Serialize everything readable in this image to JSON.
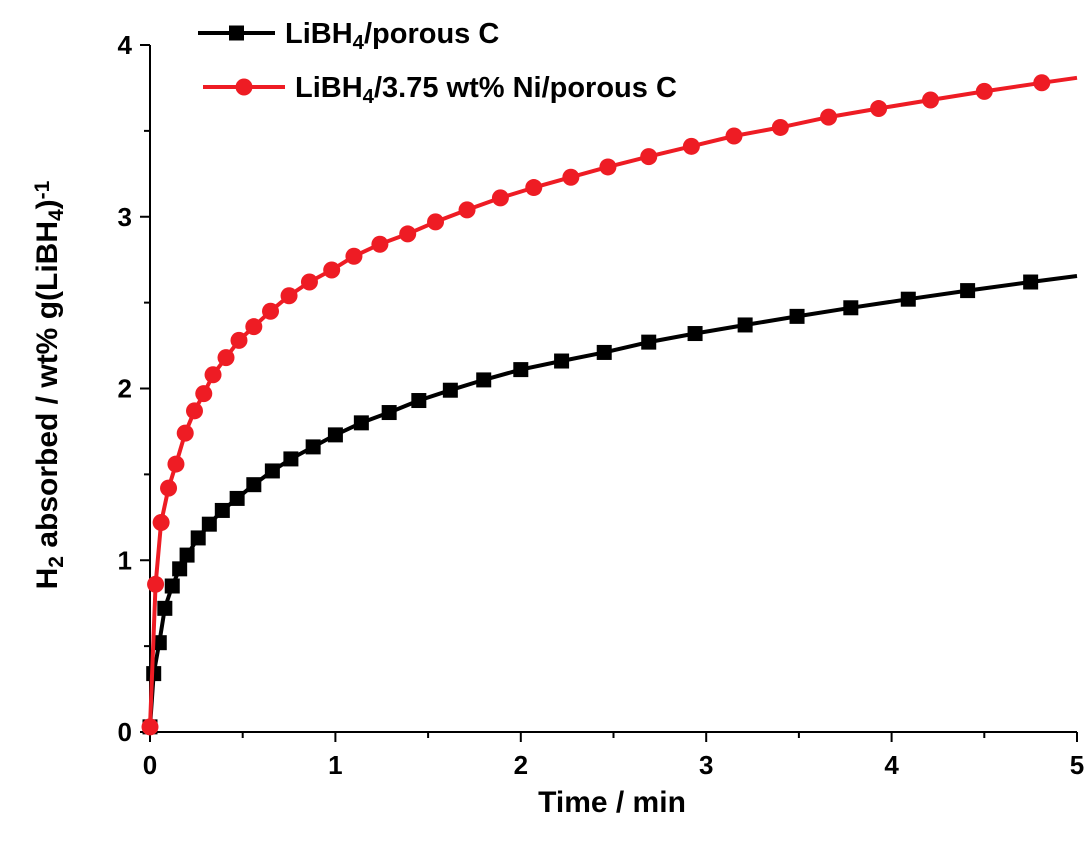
{
  "chart_data": {
    "type": "line",
    "xlabel": "Time / min",
    "ylabel_parts": [
      "H",
      "2",
      " absorbed / wt% g(LiBH",
      "4",
      ")",
      "-1"
    ],
    "xlim": [
      0,
      5
    ],
    "ylim": [
      0,
      4
    ],
    "x_ticks": [
      "0",
      "1",
      "2",
      "3",
      "4",
      "5"
    ],
    "y_ticks": [
      "0",
      "1",
      "2",
      "3",
      "4"
    ],
    "grid": false,
    "legend_position": "top-left",
    "series": [
      {
        "name_parts": [
          "LiBH",
          "4",
          "/porous C"
        ],
        "color": "#000000",
        "marker": "square",
        "x": [
          0.0,
          0.02,
          0.05,
          0.08,
          0.12,
          0.16,
          0.2,
          0.26,
          0.32,
          0.39,
          0.47,
          0.56,
          0.66,
          0.76,
          0.88,
          1.0,
          1.14,
          1.29,
          1.45,
          1.62,
          1.8,
          2.0,
          2.22,
          2.45,
          2.69,
          2.94,
          3.21,
          3.49,
          3.78,
          4.09,
          4.41,
          4.75
        ],
        "y": [
          0.03,
          0.34,
          0.52,
          0.72,
          0.85,
          0.95,
          1.03,
          1.13,
          1.21,
          1.29,
          1.36,
          1.44,
          1.52,
          1.59,
          1.66,
          1.73,
          1.8,
          1.86,
          1.93,
          1.99,
          2.05,
          2.11,
          2.16,
          2.21,
          2.27,
          2.32,
          2.37,
          2.42,
          2.47,
          2.52,
          2.57,
          2.62
        ]
      },
      {
        "name_parts": [
          "LiBH",
          "4",
          "/3.75 wt% Ni/porous C"
        ],
        "color": "#ee1c24",
        "marker": "circle",
        "x": [
          0.0,
          0.03,
          0.06,
          0.1,
          0.14,
          0.19,
          0.24,
          0.29,
          0.34,
          0.41,
          0.48,
          0.56,
          0.65,
          0.75,
          0.86,
          0.98,
          1.1,
          1.24,
          1.39,
          1.54,
          1.71,
          1.89,
          2.07,
          2.27,
          2.47,
          2.69,
          2.92,
          3.15,
          3.4,
          3.66,
          3.93,
          4.21,
          4.5,
          4.81
        ],
        "y": [
          0.03,
          0.86,
          1.22,
          1.42,
          1.56,
          1.74,
          1.87,
          1.97,
          2.08,
          2.18,
          2.28,
          2.36,
          2.45,
          2.54,
          2.62,
          2.69,
          2.77,
          2.84,
          2.9,
          2.97,
          3.04,
          3.11,
          3.17,
          3.23,
          3.29,
          3.35,
          3.41,
          3.47,
          3.52,
          3.58,
          3.63,
          3.68,
          3.73,
          3.78
        ]
      }
    ]
  }
}
